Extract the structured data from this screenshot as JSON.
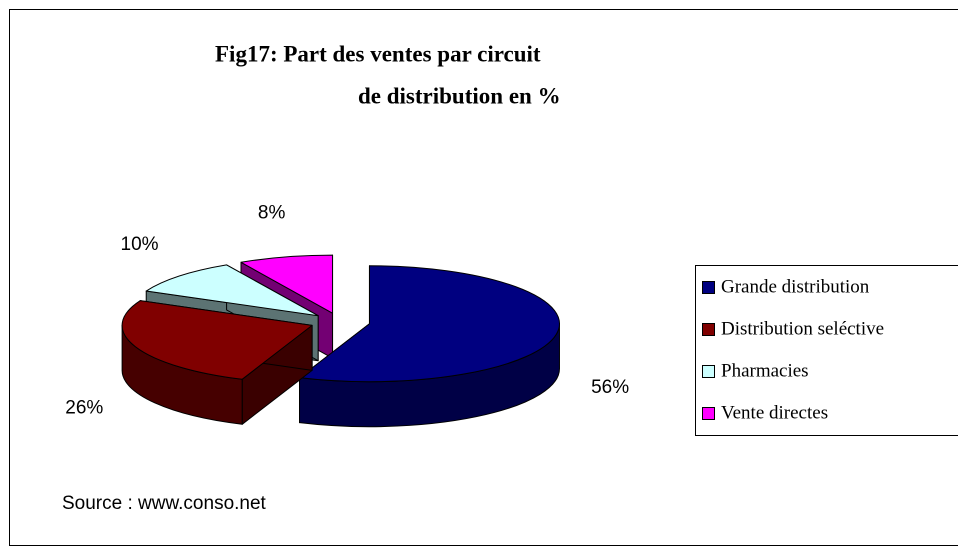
{
  "chart_data": {
    "type": "pie3d",
    "title": [
      "Fig17: Part des ventes par circuit",
      "de distribution en %"
    ],
    "categories": [
      "Grande distribution",
      "Distribution seléctive",
      "Pharmacies",
      "Vente directes"
    ],
    "values": [
      56,
      26,
      10,
      8
    ],
    "value_labels": [
      "56%",
      "26%",
      "10%",
      "8%"
    ],
    "colors": [
      "#000080",
      "#800000",
      "#ccffff",
      "#ff00ff"
    ],
    "legend": "right",
    "annotation": "Source : www.conso.net"
  }
}
